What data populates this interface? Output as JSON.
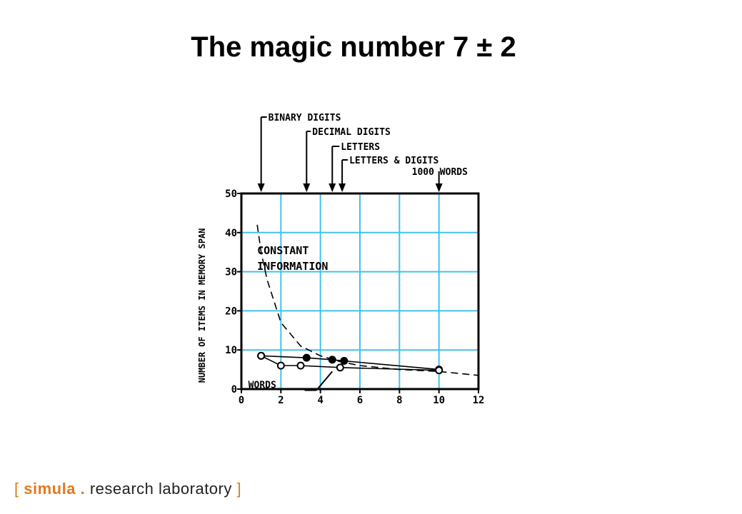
{
  "slide": {
    "title": "The magic number 7 ± 2"
  },
  "chart_data": {
    "type": "line",
    "ylabel": "NUMBER OF ITEMS IN MEMORY SPAN",
    "xlim": [
      0,
      12
    ],
    "ylim": [
      0,
      50
    ],
    "x_ticks": [
      0,
      2,
      4,
      6,
      8,
      10,
      12
    ],
    "y_ticks": [
      0,
      10,
      20,
      30,
      40,
      50
    ],
    "grid": true,
    "categories_top": [
      {
        "label": "BINARY DIGITS",
        "x": 1
      },
      {
        "label": "DECIMAL DIGITS",
        "x": 3.3
      },
      {
        "label": "LETTERS",
        "x": 4.6
      },
      {
        "label": "LETTERS & DIGITS",
        "x": 5.1
      },
      {
        "label": "1000 WORDS",
        "x": 10
      }
    ],
    "annotations": [
      {
        "label": "CONSTANT INFORMATION",
        "lines": [
          "CONSTANT",
          "INFORMATION"
        ]
      },
      {
        "label": "WORDS"
      }
    ],
    "series": [
      {
        "style": "dashed",
        "x": [
          0.8,
          1,
          1.3,
          2,
          3,
          4,
          5,
          6,
          8,
          10,
          12
        ],
        "y": [
          42,
          35,
          28,
          17,
          11,
          8.5,
          7,
          6,
          5,
          4.5,
          3.5
        ]
      },
      {
        "style": "solid-filled",
        "x": [
          1,
          3.3,
          4.6,
          5.2,
          10
        ],
        "y": [
          8.5,
          8,
          7.5,
          7.2,
          5
        ]
      },
      {
        "style": "solid-open",
        "x": [
          1,
          2,
          3,
          5,
          10
        ],
        "y": [
          8.5,
          6,
          6,
          5.5,
          4.8
        ]
      }
    ]
  },
  "footer": {
    "open_bracket": "[",
    "brand": "simula",
    "dot": ".",
    "text": "research laboratory",
    "close_bracket": "]"
  }
}
